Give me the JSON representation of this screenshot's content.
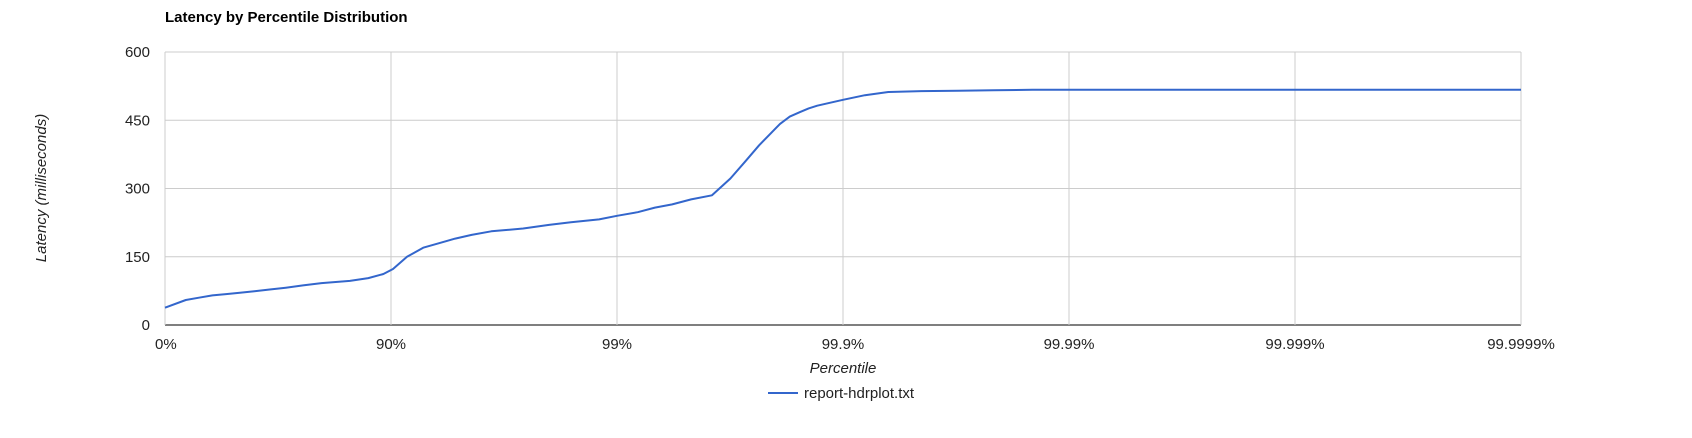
{
  "chart_data": {
    "type": "line",
    "title": "Latency by Percentile Distribution",
    "xlabel": "Percentile",
    "ylabel": "Latency (milliseconds)",
    "x_scale": "log-inverse-percentile",
    "x_ticks": [
      "0%",
      "90%",
      "99%",
      "99.9%",
      "99.99%",
      "99.999%",
      "99.9999%"
    ],
    "y_ticks": [
      "0",
      "150",
      "300",
      "450",
      "600"
    ],
    "ylim": [
      0,
      600
    ],
    "grid": true,
    "legend_position": "bottom",
    "series": [
      {
        "name": "report-hdrplot.txt",
        "color": "#3366cc",
        "x": [
          0,
          19.1,
          29.2,
          38.3,
          46.3,
          53.4,
          59.8,
          65.6,
          70.8,
          75.5,
          79.7,
          84.8,
          87.4,
          89.2,
          90.2,
          91.5,
          92.8,
          93.9,
          94.8,
          95.6,
          96.4,
          97.4,
          98.0,
          98.4,
          98.8,
          99.0,
          99.19,
          99.32,
          99.43,
          99.53,
          99.62,
          99.685,
          99.73,
          99.765,
          99.79,
          99.81,
          99.828,
          99.845,
          99.858,
          99.87,
          99.9,
          99.92,
          99.937,
          99.955,
          99.969,
          99.9784,
          99.9855,
          99.9916,
          99.995,
          99.9987,
          99.9999
        ],
        "y": [
          38,
          55,
          60,
          65,
          68,
          71,
          74,
          78,
          82,
          87,
          92,
          97,
          103,
          112,
          123,
          150,
          170,
          180,
          190,
          198,
          206,
          212,
          220,
          226,
          232,
          240,
          248,
          258,
          265,
          276,
          285,
          322,
          360,
          395,
          420,
          442,
          458,
          468,
          476,
          482,
          495,
          505,
          512,
          514,
          515,
          516,
          517,
          517,
          517,
          517,
          517
        ]
      }
    ]
  }
}
